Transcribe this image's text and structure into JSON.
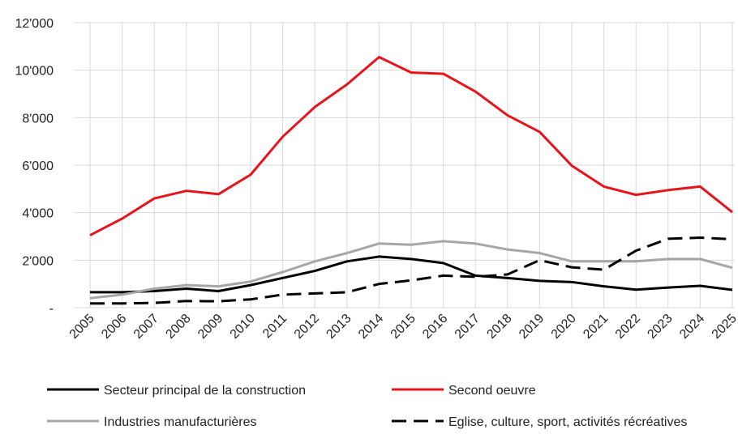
{
  "chart_data": {
    "type": "line",
    "categories": [
      "2005",
      "2006",
      "2007",
      "2008",
      "2009",
      "2010",
      "2011",
      "2012",
      "2013",
      "2014",
      "2015",
      "2016",
      "2017",
      "2018",
      "2019",
      "2020",
      "2021",
      "2022",
      "2023",
      "2024",
      "2025"
    ],
    "series": [
      {
        "name": "Secteur principal de la construction",
        "color": "#000000",
        "dash": false,
        "values": [
          650,
          650,
          700,
          800,
          700,
          950,
          1250,
          1550,
          1950,
          2150,
          2050,
          1880,
          1350,
          1250,
          1130,
          1080,
          900,
          760,
          850,
          920,
          750
        ]
      },
      {
        "name": "Second oeuvre",
        "color": "#e8141b",
        "dash": false,
        "values": [
          3050,
          3750,
          4600,
          4920,
          4780,
          5600,
          7200,
          8450,
          9400,
          10550,
          9900,
          9850,
          9100,
          8100,
          7400,
          5980,
          5100,
          4750,
          4950,
          5100,
          4020
        ]
      },
      {
        "name": "Industries manufacturières",
        "color": "#a6a6a6",
        "dash": false,
        "values": [
          400,
          550,
          800,
          950,
          900,
          1100,
          1500,
          1950,
          2300,
          2700,
          2650,
          2800,
          2700,
          2450,
          2300,
          1950,
          1950,
          1950,
          2050,
          2050,
          1680
        ]
      },
      {
        "name": "Eglise, culture, sport, activités récréatives",
        "color": "#000000",
        "dash": true,
        "values": [
          180,
          180,
          200,
          280,
          270,
          350,
          550,
          600,
          650,
          1000,
          1150,
          1350,
          1300,
          1400,
          2000,
          1700,
          1600,
          2400,
          2900,
          2950,
          2880
        ]
      }
    ],
    "ylim": [
      0,
      12000
    ],
    "yticks": [
      {
        "value": 0,
        "label": "-"
      },
      {
        "value": 2000,
        "label": "2'000"
      },
      {
        "value": 4000,
        "label": "4'000"
      },
      {
        "value": 6000,
        "label": "6'000"
      },
      {
        "value": 8000,
        "label": "8'000"
      },
      {
        "value": 10000,
        "label": "10'000"
      },
      {
        "value": 12000,
        "label": "12'000"
      }
    ],
    "grid": true
  }
}
